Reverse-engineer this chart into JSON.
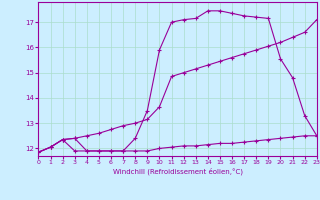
{
  "xlabel": "Windchill (Refroidissement éolien,°C)",
  "bg_color": "#cceeff",
  "grid_color": "#aaddcc",
  "line_color": "#990099",
  "xmin": 0,
  "xmax": 23,
  "ymin": 11.7,
  "ymax": 17.8,
  "yticks": [
    12,
    13,
    14,
    15,
    16,
    17
  ],
  "xticks": [
    0,
    1,
    2,
    3,
    4,
    5,
    6,
    7,
    8,
    9,
    10,
    11,
    12,
    13,
    14,
    15,
    16,
    17,
    18,
    19,
    20,
    21,
    22,
    23
  ],
  "line1_x": [
    0,
    1,
    2,
    3,
    4,
    5,
    6,
    7,
    8,
    9,
    10,
    11,
    12,
    13,
    14,
    15,
    16,
    17,
    18,
    19,
    20,
    21,
    22,
    23
  ],
  "line1_y": [
    11.85,
    12.05,
    12.35,
    11.9,
    11.9,
    11.9,
    11.9,
    11.9,
    11.9,
    11.9,
    12.0,
    12.05,
    12.1,
    12.1,
    12.15,
    12.2,
    12.2,
    12.25,
    12.3,
    12.35,
    12.4,
    12.45,
    12.5,
    12.5
  ],
  "line2_x": [
    0,
    1,
    2,
    3,
    4,
    5,
    6,
    7,
    8,
    9,
    10,
    11,
    12,
    13,
    14,
    15,
    16,
    17,
    18,
    19,
    20,
    21,
    22,
    23
  ],
  "line2_y": [
    11.85,
    12.05,
    12.35,
    12.4,
    12.5,
    12.6,
    12.75,
    12.9,
    13.0,
    13.15,
    13.65,
    14.85,
    15.0,
    15.15,
    15.3,
    15.45,
    15.6,
    15.75,
    15.9,
    16.05,
    16.2,
    16.4,
    16.6,
    17.1
  ],
  "line3_x": [
    0,
    1,
    2,
    3,
    4,
    5,
    6,
    7,
    8,
    9,
    10,
    11,
    12,
    13,
    14,
    15,
    16,
    17,
    18,
    19,
    20,
    21,
    22,
    23
  ],
  "line3_y": [
    11.85,
    12.05,
    12.35,
    12.4,
    11.9,
    11.9,
    11.9,
    11.9,
    12.4,
    13.5,
    15.9,
    17.0,
    17.1,
    17.15,
    17.45,
    17.45,
    17.35,
    17.25,
    17.2,
    17.15,
    15.55,
    14.8,
    13.3,
    12.5
  ]
}
